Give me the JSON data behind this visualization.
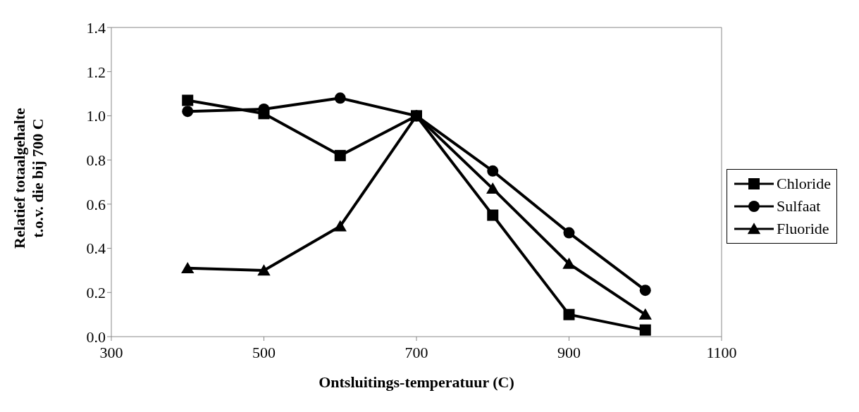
{
  "chart_data": {
    "type": "line",
    "xlabel": "Ontsluitings-temperatuur (C)",
    "ylabel": "Relatief totaalgehalte\nt.o.v. die bij 700 C",
    "x": [
      400,
      500,
      600,
      700,
      800,
      900,
      1000
    ],
    "series": [
      {
        "name": "Chloride",
        "color": "#000000",
        "marker": "square",
        "values": [
          1.07,
          1.01,
          0.82,
          1.0,
          0.55,
          0.1,
          0.03
        ]
      },
      {
        "name": "Sulfaat",
        "color": "#000000",
        "marker": "circle",
        "values": [
          1.02,
          1.03,
          1.08,
          1.0,
          0.75,
          0.47,
          0.21
        ]
      },
      {
        "name": "Fluoride",
        "color": "#000000",
        "marker": "triangle",
        "values": [
          0.31,
          0.3,
          0.5,
          1.0,
          0.67,
          0.33,
          0.1
        ]
      }
    ],
    "xlim": [
      300,
      1100
    ],
    "xticks": [
      300,
      500,
      700,
      900,
      1100
    ],
    "ylim": [
      0,
      1.4
    ],
    "yticks": [
      {
        "value": 0,
        "label": "0.0"
      },
      0.2,
      0.4,
      0.6,
      0.8,
      {
        "value": 1,
        "label": "1.0"
      },
      1.2,
      1.4
    ],
    "grid": false,
    "legend": "right",
    "line_style": "solid"
  }
}
